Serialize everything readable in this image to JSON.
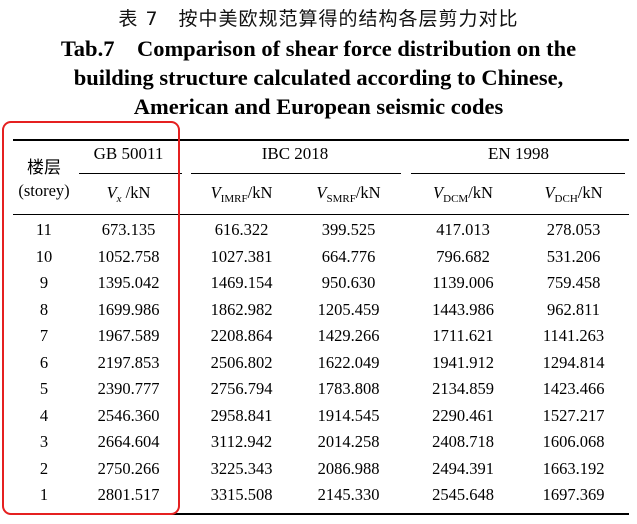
{
  "caption": {
    "chinese": "表 7　按中美欧规范算得的结构各层剪力对比",
    "english_lines": [
      "Tab.7　Comparison of shear force distribution on the",
      "building structure calculated according to Chinese,",
      "American and European seismic codes"
    ]
  },
  "table": {
    "storey_header_cn": "楼层",
    "storey_header_en": "(storey)",
    "groups": {
      "gb": "GB 50011",
      "ibc": "IBC 2018",
      "en": "EN 1998"
    },
    "columns": {
      "vx": {
        "main": "V",
        "sub": "x",
        "unit": " /kN"
      },
      "imrf": {
        "main": "V",
        "sub": "IMRF",
        "unit": "/kN"
      },
      "smrf": {
        "main": "V",
        "sub": "SMRF",
        "unit": "/kN"
      },
      "dcm": {
        "main": "V",
        "sub": "DCM",
        "unit": "/kN"
      },
      "dch": {
        "main": "V",
        "sub": "DCH",
        "unit": "/kN"
      }
    },
    "rows": [
      [
        "11",
        "673.135",
        "616.322",
        "399.525",
        "417.013",
        "278.053"
      ],
      [
        "10",
        "1052.758",
        "1027.381",
        "664.776",
        "796.682",
        "531.206"
      ],
      [
        "9",
        "1395.042",
        "1469.154",
        "950.630",
        "1139.006",
        "759.458"
      ],
      [
        "8",
        "1699.986",
        "1862.982",
        "1205.459",
        "1443.986",
        "962.811"
      ],
      [
        "7",
        "1967.589",
        "2208.864",
        "1429.266",
        "1711.621",
        "1141.263"
      ],
      [
        "6",
        "2197.853",
        "2506.802",
        "1622.049",
        "1941.912",
        "1294.814"
      ],
      [
        "5",
        "2390.777",
        "2756.794",
        "1783.808",
        "2134.859",
        "1423.466"
      ],
      [
        "4",
        "2546.360",
        "2958.841",
        "1914.545",
        "2290.461",
        "1527.217"
      ],
      [
        "3",
        "2664.604",
        "3112.942",
        "2014.258",
        "2408.718",
        "1606.068"
      ],
      [
        "2",
        "2750.266",
        "3225.343",
        "2086.988",
        "2494.391",
        "1663.192"
      ],
      [
        "1",
        "2801.517",
        "3315.508",
        "2145.330",
        "2545.648",
        "1697.369"
      ]
    ]
  },
  "highlight": {
    "color": "#e52020"
  }
}
